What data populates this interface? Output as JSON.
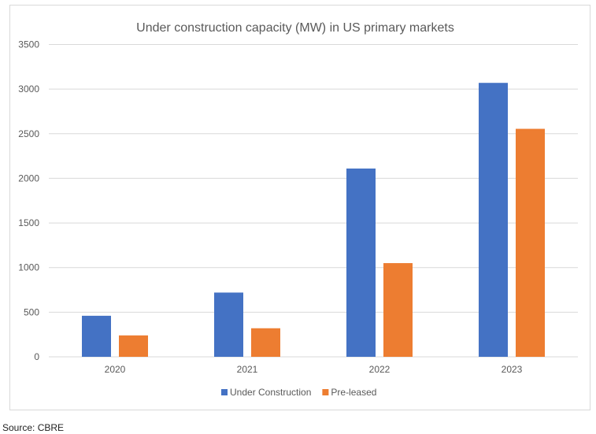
{
  "chart_data": {
    "type": "bar",
    "title": "Under construction capacity (MW) in US primary markets",
    "categories": [
      "2020",
      "2021",
      "2022",
      "2023"
    ],
    "series": [
      {
        "name": "Under Construction",
        "color": "#4472c4",
        "values": [
          460,
          720,
          2110,
          3070
        ]
      },
      {
        "name": "Pre-leased",
        "color": "#ed7d31",
        "values": [
          240,
          320,
          1050,
          2555
        ]
      }
    ],
    "ylim": [
      0,
      3500
    ],
    "yticks": [
      0,
      500,
      1000,
      1500,
      2000,
      2500,
      3000,
      3500
    ],
    "grid": true,
    "legend": "bottom",
    "xlabel": "",
    "ylabel": ""
  },
  "source": "Source: CBRE"
}
